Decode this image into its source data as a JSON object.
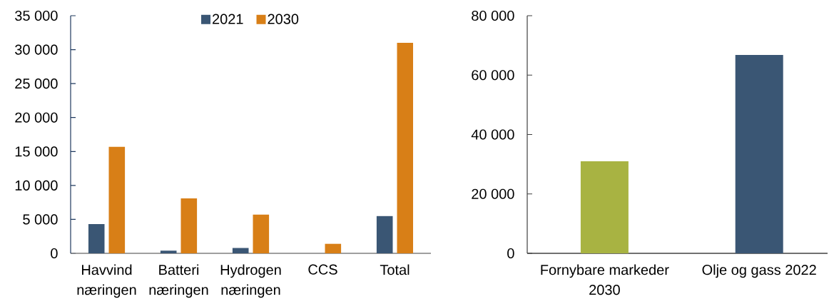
{
  "chart_data": [
    {
      "type": "bar",
      "categories": [
        "Havvind næringen",
        "Batteri næringen",
        "Hydrogen næringen",
        "CCS",
        "Total"
      ],
      "series": [
        {
          "name": "2021",
          "color": "#3a5674",
          "values": [
            4300,
            400,
            800,
            null,
            5500
          ]
        },
        {
          "name": "2030",
          "color": "#d87f17",
          "values": [
            15700,
            8100,
            5700,
            1400,
            31000
          ]
        }
      ],
      "ylim": [
        0,
        35000
      ],
      "yticks": [
        0,
        {
          "value": 5000,
          "label": "5 000"
        },
        {
          "value": 10000,
          "label": "10 000"
        },
        {
          "value": 15000,
          "label": "15 000"
        },
        {
          "value": 20000,
          "label": "20 000"
        },
        {
          "value": 25000,
          "label": "25 000"
        },
        {
          "value": 30000,
          "label": "30 000"
        },
        {
          "value": 35000,
          "label": "35 000"
        }
      ],
      "legend": "top"
    },
    {
      "type": "bar",
      "categories": [
        "Fornybare markeder 2030",
        "Olje og gass 2022"
      ],
      "values": [
        31000,
        66800
      ],
      "colors": [
        "#a8b342",
        "#3a5674"
      ],
      "ylim": [
        0,
        80000
      ],
      "yticks": [
        0,
        {
          "value": 20000,
          "label": "20 000"
        },
        {
          "value": 40000,
          "label": "40 000"
        },
        {
          "value": 60000,
          "label": "60 000"
        },
        {
          "value": 80000,
          "label": "80 000"
        }
      ]
    }
  ]
}
